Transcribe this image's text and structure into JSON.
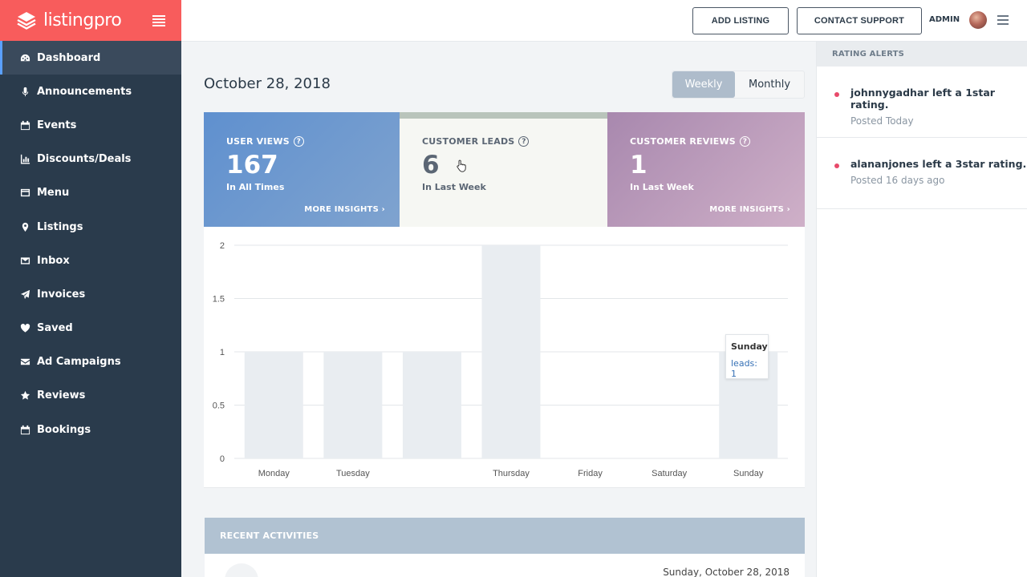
{
  "brand": {
    "name": "listingpro",
    "color": "#f85c5c"
  },
  "sidebar": {
    "items": [
      {
        "label": "Dashboard",
        "icon": "dashboard-icon"
      },
      {
        "label": "Announcements",
        "icon": "microphone-icon"
      },
      {
        "label": "Events",
        "icon": "calendar-icon"
      },
      {
        "label": "Discounts/Deals",
        "icon": "bar-chart-icon"
      },
      {
        "label": "Menu",
        "icon": "card-icon"
      },
      {
        "label": "Listings",
        "icon": "map-pin-icon"
      },
      {
        "label": "Inbox",
        "icon": "envelope-icon"
      },
      {
        "label": "Invoices",
        "icon": "paper-plane-icon"
      },
      {
        "label": "Saved",
        "icon": "heart-icon"
      },
      {
        "label": "Ad Campaigns",
        "icon": "envelope-fill-icon"
      },
      {
        "label": "Reviews",
        "icon": "star-icon"
      },
      {
        "label": "Bookings",
        "icon": "calendar-icon"
      }
    ]
  },
  "header": {
    "add_listing": "ADD LISTING",
    "contact_support": "CONTACT SUPPORT",
    "user_label": "ADMIN"
  },
  "main": {
    "date": "October 28, 2018",
    "toggle": {
      "weekly": "Weekly",
      "monthly": "Monthly",
      "selected": "Weekly"
    },
    "cards": [
      {
        "title": "USER VIEWS",
        "value": "167",
        "sub": "In All Times",
        "more": "MORE INSIGHTS"
      },
      {
        "title": "CUSTOMER LEADS",
        "value": "6",
        "sub": "In Last Week",
        "more": ""
      },
      {
        "title": "CUSTOMER REVIEWS",
        "value": "1",
        "sub": "In Last Week",
        "more": "MORE INSIGHTS"
      }
    ],
    "tooltip": {
      "title": "Sunday",
      "value": "leads: 1"
    },
    "recent": {
      "title": "RECENT ACTIVITIES",
      "date": "Sunday, October 28, 2018"
    }
  },
  "chart_data": {
    "type": "bar",
    "categories": [
      "Monday",
      "Tuesday",
      "",
      "Thursday",
      "Friday",
      "Saturday",
      "Sunday"
    ],
    "series": [
      {
        "name": "leads",
        "values": [
          1,
          1,
          1,
          2,
          0,
          0,
          1
        ]
      }
    ],
    "ylim": [
      0,
      2
    ],
    "yticks": [
      0,
      0.5,
      1,
      1.5,
      2
    ],
    "grid": true,
    "bar_color": "#e9edf1"
  },
  "right_panel": {
    "title": "RATING ALERTS",
    "alerts": [
      {
        "text": "johnnygadhar left a 1star rating.",
        "time": "Posted Today"
      },
      {
        "text": "alananjones left a 3star rating.",
        "time": "Posted 16 days ago"
      }
    ]
  }
}
